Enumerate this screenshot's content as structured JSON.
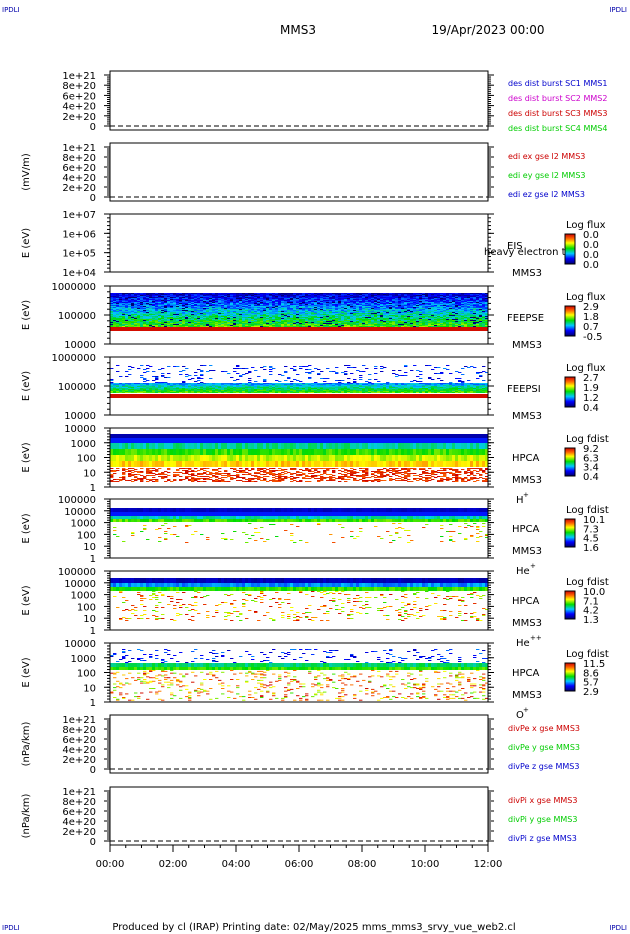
{
  "header": {
    "corner_left": "IPDLI",
    "corner_right": "IPDLI",
    "mission": "MMS3",
    "date": "19/Apr/2023 00:00"
  },
  "footer": {
    "text": "Produced by cl (IRAP)   Printing date: 02/May/2025   mms_mms3_srvy_vue_web2.cl",
    "corner_left": "IPDLI",
    "corner_right": "IPDLI"
  },
  "colors": {
    "blue": "#0000cc",
    "magenta": "#cc00cc",
    "red": "#cc0000",
    "green": "#00cc00"
  },
  "chart_data": {
    "type": "multi-panel time series / spectrogram",
    "x_ticks": [
      "00:00",
      "02:00",
      "04:00",
      "06:00",
      "08:00",
      "10:00",
      "12:00"
    ],
    "panels": [
      {
        "kind": "line",
        "ylabel": "",
        "yticks": [
          "1e+21",
          "8e+20",
          "6e+20",
          "4e+20",
          "2e+20",
          "0"
        ],
        "legend": [
          {
            "text": "des dist burst SC1 MMS1",
            "color": "#0000cc"
          },
          {
            "text": "des dist burst SC2 MMS2",
            "color": "#cc00cc"
          },
          {
            "text": "des dist burst SC3 MMS3",
            "color": "#cc0000"
          },
          {
            "text": "des dist burst SC4 MMS4",
            "color": "#00cc00"
          }
        ]
      },
      {
        "kind": "line",
        "ylabel": "(mV/m)",
        "yticks": [
          "1e+21",
          "8e+20",
          "6e+20",
          "4e+20",
          "2e+20",
          "0"
        ],
        "legend": [
          {
            "text": "edi ex gse l2 MMS3",
            "color": "#cc0000"
          },
          {
            "text": "edi ey gse l2 MMS3",
            "color": "#00cc00"
          },
          {
            "text": "edi ez gse l2 MMS3",
            "color": "#0000cc"
          }
        ]
      },
      {
        "kind": "spectrogram",
        "ylabel": "E (eV)",
        "yticks": [
          "1e+07",
          "1e+06",
          "1e+05",
          "1e+04"
        ],
        "instrument": [
          "EIS",
          "MMS3"
        ],
        "overlay_text": "heavy electron to",
        "cb_title": "Log flux",
        "cb_ticks": [
          "0.0",
          "0.0",
          "0.0",
          "0.0"
        ],
        "empty": true
      },
      {
        "kind": "spectrogram",
        "ylabel": "E (eV)",
        "yticks": [
          "1000000",
          "100000",
          "10000"
        ],
        "instrument": [
          "FEEPSE",
          "MMS3"
        ],
        "cb_title": "Log flux",
        "cb_ticks": [
          "2.9",
          "1.8",
          "0.7",
          "-0.5"
        ],
        "pattern": "feepse"
      },
      {
        "kind": "spectrogram",
        "ylabel": "E (eV)",
        "yticks": [
          "1000000",
          "100000",
          "10000"
        ],
        "instrument": [
          "FEEPSI",
          "MMS3"
        ],
        "cb_title": "Log flux",
        "cb_ticks": [
          "2.7",
          "1.9",
          "1.2",
          "0.4"
        ],
        "pattern": "feepsi"
      },
      {
        "kind": "spectrogram",
        "ylabel": "E (eV)",
        "yticks": [
          "10000",
          "1000",
          "100",
          "10",
          "1"
        ],
        "instrument": [
          "HPCA",
          "MMS3"
        ],
        "species": "H",
        "species_sup": "+",
        "cb_title": "Log fdist",
        "cb_ticks": [
          "9.2",
          "6.3",
          "3.4",
          "0.4"
        ],
        "pattern": "hplus"
      },
      {
        "kind": "spectrogram",
        "ylabel": "E (eV)",
        "yticks": [
          "100000",
          "10000",
          "1000",
          "100",
          "10",
          "1"
        ],
        "instrument": [
          "HPCA",
          "MMS3"
        ],
        "species": "He",
        "species_sup": "+",
        "cb_title": "Log fdist",
        "cb_ticks": [
          "10.1",
          "7.3",
          "4.5",
          "1.6"
        ],
        "pattern": "heplus"
      },
      {
        "kind": "spectrogram",
        "ylabel": "E (eV)",
        "yticks": [
          "100000",
          "10000",
          "1000",
          "100",
          "10",
          "1"
        ],
        "instrument": [
          "HPCA",
          "MMS3"
        ],
        "species": "He",
        "species_sup": "++",
        "cb_title": "Log fdist",
        "cb_ticks": [
          "10.0",
          "7.1",
          "4.2",
          "1.3"
        ],
        "pattern": "heplusplus"
      },
      {
        "kind": "spectrogram",
        "ylabel": "E (eV)",
        "yticks": [
          "10000",
          "1000",
          "100",
          "10",
          "1"
        ],
        "instrument": [
          "HPCA",
          "MMS3"
        ],
        "species": "O",
        "species_sup": "+",
        "cb_title": "Log fdist",
        "cb_ticks": [
          "11.5",
          "8.6",
          "5.7",
          "2.9"
        ],
        "pattern": "oplus"
      },
      {
        "kind": "line",
        "ylabel": "(nPa/km)",
        "yticks": [
          "1e+21",
          "8e+20",
          "6e+20",
          "4e+20",
          "2e+20",
          "0"
        ],
        "legend": [
          {
            "text": "divPe x gse MMS3",
            "color": "#cc0000"
          },
          {
            "text": "divPe y gse MMS3",
            "color": "#00cc00"
          },
          {
            "text": "divPe z gse MMS3",
            "color": "#0000cc"
          }
        ]
      },
      {
        "kind": "line",
        "ylabel": "(nPa/km)",
        "yticks": [
          "1e+21",
          "8e+20",
          "6e+20",
          "4e+20",
          "2e+20",
          "0"
        ],
        "legend": [
          {
            "text": "divPi x gse MMS3",
            "color": "#cc0000"
          },
          {
            "text": "divPi y gse MMS3",
            "color": "#00cc00"
          },
          {
            "text": "divPi z gse MMS3",
            "color": "#0000cc"
          }
        ]
      }
    ]
  }
}
